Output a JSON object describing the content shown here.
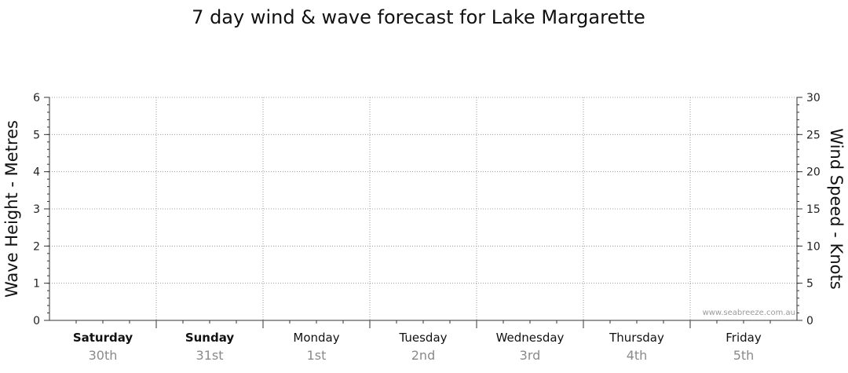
{
  "chart_data": {
    "type": "line",
    "title": "7 day wind & wave forecast for Lake Margarette",
    "ylabel_left": "Wave Height - Metres",
    "ylabel_right": "Wind Speed - Knots",
    "ylim_left": [
      0,
      6
    ],
    "ylim_right": [
      0,
      30
    ],
    "yticks_left": [
      "0",
      "1",
      "2",
      "3",
      "4",
      "5",
      "6"
    ],
    "yticks_right": [
      "0",
      "5",
      "10",
      "15",
      "20",
      "25",
      "30"
    ],
    "grid": true,
    "days": [
      {
        "day": "Saturday",
        "date": "30th",
        "bold": true
      },
      {
        "day": "Sunday",
        "date": "31st",
        "bold": true
      },
      {
        "day": "Monday",
        "date": "1st",
        "bold": false
      },
      {
        "day": "Tuesday",
        "date": "2nd",
        "bold": false
      },
      {
        "day": "Wednesday",
        "date": "3rd",
        "bold": false
      },
      {
        "day": "Thursday",
        "date": "4th",
        "bold": false
      },
      {
        "day": "Friday",
        "date": "5th",
        "bold": false
      }
    ],
    "series": [],
    "watermark": "www.seabreeze.com.au"
  }
}
